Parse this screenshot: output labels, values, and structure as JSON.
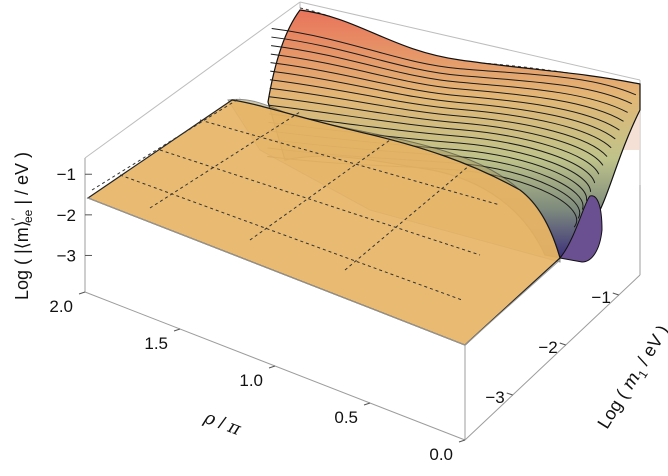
{
  "chart_data": {
    "type": "surface3d",
    "title": "",
    "z_axis": {
      "label_parts": [
        "Log ( |⟨m⟩",
        "′",
        "ee",
        " | / eV )"
      ],
      "ticks": [
        -1,
        -2,
        -3
      ],
      "tick_labels": [
        "−1",
        "−2",
        "−3"
      ],
      "range": [
        -3.9,
        -0.6
      ]
    },
    "rho_axis": {
      "label_parts": [
        "ρ",
        " / ",
        "π"
      ],
      "ticks": [
        2.0,
        1.5,
        1.0,
        0.5,
        0.0
      ],
      "tick_labels": [
        "2.0",
        "1.5",
        "1.0",
        "0.5",
        "0.0"
      ],
      "range": [
        0,
        2
      ]
    },
    "m1_axis": {
      "label_parts": [
        "Log ( ",
        "m",
        "1",
        " / eV )"
      ],
      "ticks": [
        -1,
        -2,
        -3
      ],
      "tick_labels": [
        "−1",
        "−2",
        "−3"
      ],
      "range": [
        -3.9,
        -0.6
      ]
    },
    "series": [
      {
        "surface": "flat-plateau",
        "z_value": -1.4,
        "rho_range": [
          0,
          2
        ],
        "m1_range": [
          -3.9,
          -0.8
        ],
        "color": "#e8b566"
      },
      {
        "surface": "rising-sheet",
        "rho_range": [
          0,
          2
        ],
        "m1_range": [
          -1.0,
          -0.6
        ],
        "z_range": [
          -3.9,
          -0.6
        ],
        "contour_count": 16,
        "color_low": "#3b2f7a",
        "color_high": "#e9735a"
      }
    ],
    "grid": true,
    "legend": "none"
  }
}
